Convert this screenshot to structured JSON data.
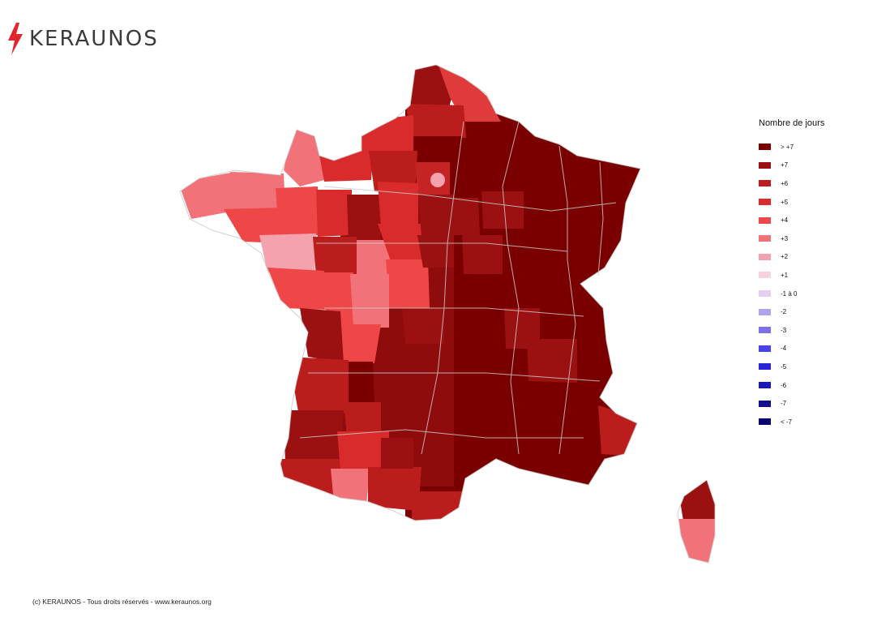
{
  "brand": {
    "name": "KERAUNOS",
    "accent": "#e3262b",
    "text_color": "#3b3b3b"
  },
  "legend": {
    "title": "Nombre de jours",
    "items": [
      {
        "label": "> +7",
        "color": "#7a0000"
      },
      {
        "label": "+7",
        "color": "#9b1010"
      },
      {
        "label": "+6",
        "color": "#bb1c1c"
      },
      {
        "label": "+5",
        "color": "#d92b2b"
      },
      {
        "label": "+4",
        "color": "#ef4747"
      },
      {
        "label": "+3",
        "color": "#f17379"
      },
      {
        "label": "+2",
        "color": "#f4a3ae"
      },
      {
        "label": "+1",
        "color": "#f8d3de"
      },
      {
        "label": "-1 à 0",
        "color": "#e3d0f3"
      },
      {
        "label": "-2",
        "color": "#b0a3f0"
      },
      {
        "label": "-3",
        "color": "#7c70ef"
      },
      {
        "label": "-4",
        "color": "#4a43ea"
      },
      {
        "label": "-5",
        "color": "#2a26d6"
      },
      {
        "label": "-6",
        "color": "#1a1ab8"
      },
      {
        "label": "-7",
        "color": "#10108f"
      },
      {
        "label": "< -7",
        "color": "#070670"
      }
    ]
  },
  "footer": {
    "copyright": "(c) KERAUNOS - Tous droits réservés - www.keraunos.org"
  }
}
